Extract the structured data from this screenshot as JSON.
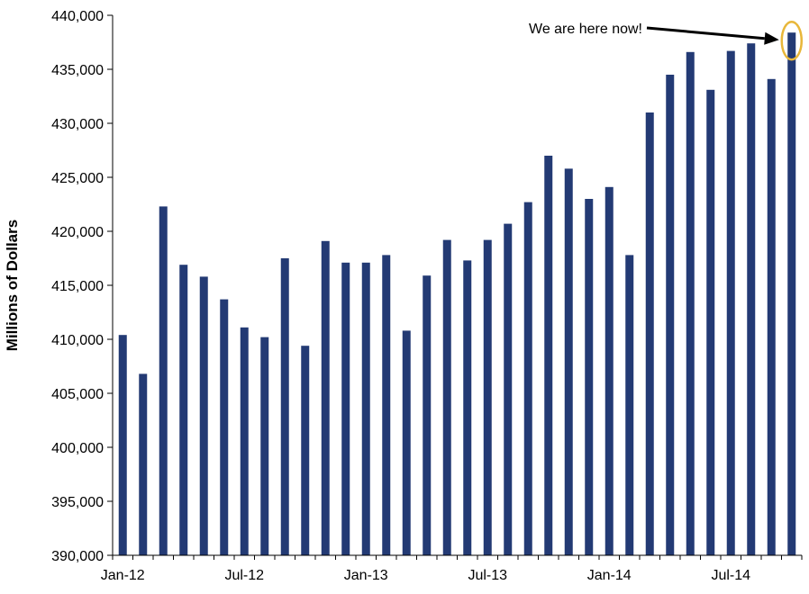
{
  "chart_data": {
    "type": "bar",
    "title": "",
    "xlabel": "",
    "ylabel": "Millions of Dollars",
    "ylim": [
      390000,
      440000
    ],
    "yticks": [
      390000,
      395000,
      400000,
      405000,
      410000,
      415000,
      420000,
      425000,
      430000,
      435000,
      440000
    ],
    "ytick_labels": [
      "390,000",
      "395,000",
      "400,000",
      "405,000",
      "410,000",
      "415,000",
      "420,000",
      "425,000",
      "430,000",
      "435,000",
      "440,000"
    ],
    "xtick_labels": [
      {
        "label": "Jan-12",
        "index": 0
      },
      {
        "label": "Jul-12",
        "index": 6
      },
      {
        "label": "Jan-13",
        "index": 12
      },
      {
        "label": "Jul-13",
        "index": 18
      },
      {
        "label": "Jan-14",
        "index": 24
      },
      {
        "label": "Jul-14",
        "index": 30
      }
    ],
    "categories": [
      "Jan-12",
      "Feb-12",
      "Mar-12",
      "Apr-12",
      "May-12",
      "Jun-12",
      "Jul-12",
      "Aug-12",
      "Sep-12",
      "Oct-12",
      "Nov-12",
      "Dec-12",
      "Jan-13",
      "Feb-13",
      "Mar-13",
      "Apr-13",
      "May-13",
      "Jun-13",
      "Jul-13",
      "Aug-13",
      "Sep-13",
      "Oct-13",
      "Nov-13",
      "Dec-13",
      "Jan-14",
      "Feb-14",
      "Mar-14",
      "Apr-14",
      "May-14",
      "Jun-14",
      "Jul-14",
      "Aug-14",
      "Sep-14",
      "Oct-14"
    ],
    "values": [
      410400,
      406800,
      422300,
      416900,
      415800,
      413700,
      411100,
      410200,
      417500,
      409400,
      419100,
      417100,
      417100,
      417800,
      410800,
      415900,
      419200,
      417300,
      419200,
      420700,
      422700,
      427000,
      425800,
      423000,
      424100,
      417800,
      431000,
      434500,
      436600,
      433100,
      436700,
      437400,
      434100,
      438400
    ],
    "bar_color": "#233A74",
    "grid": false,
    "annotation": {
      "text": "We are here now!",
      "target_index": 33,
      "highlight_color": "#E8B73A"
    }
  }
}
